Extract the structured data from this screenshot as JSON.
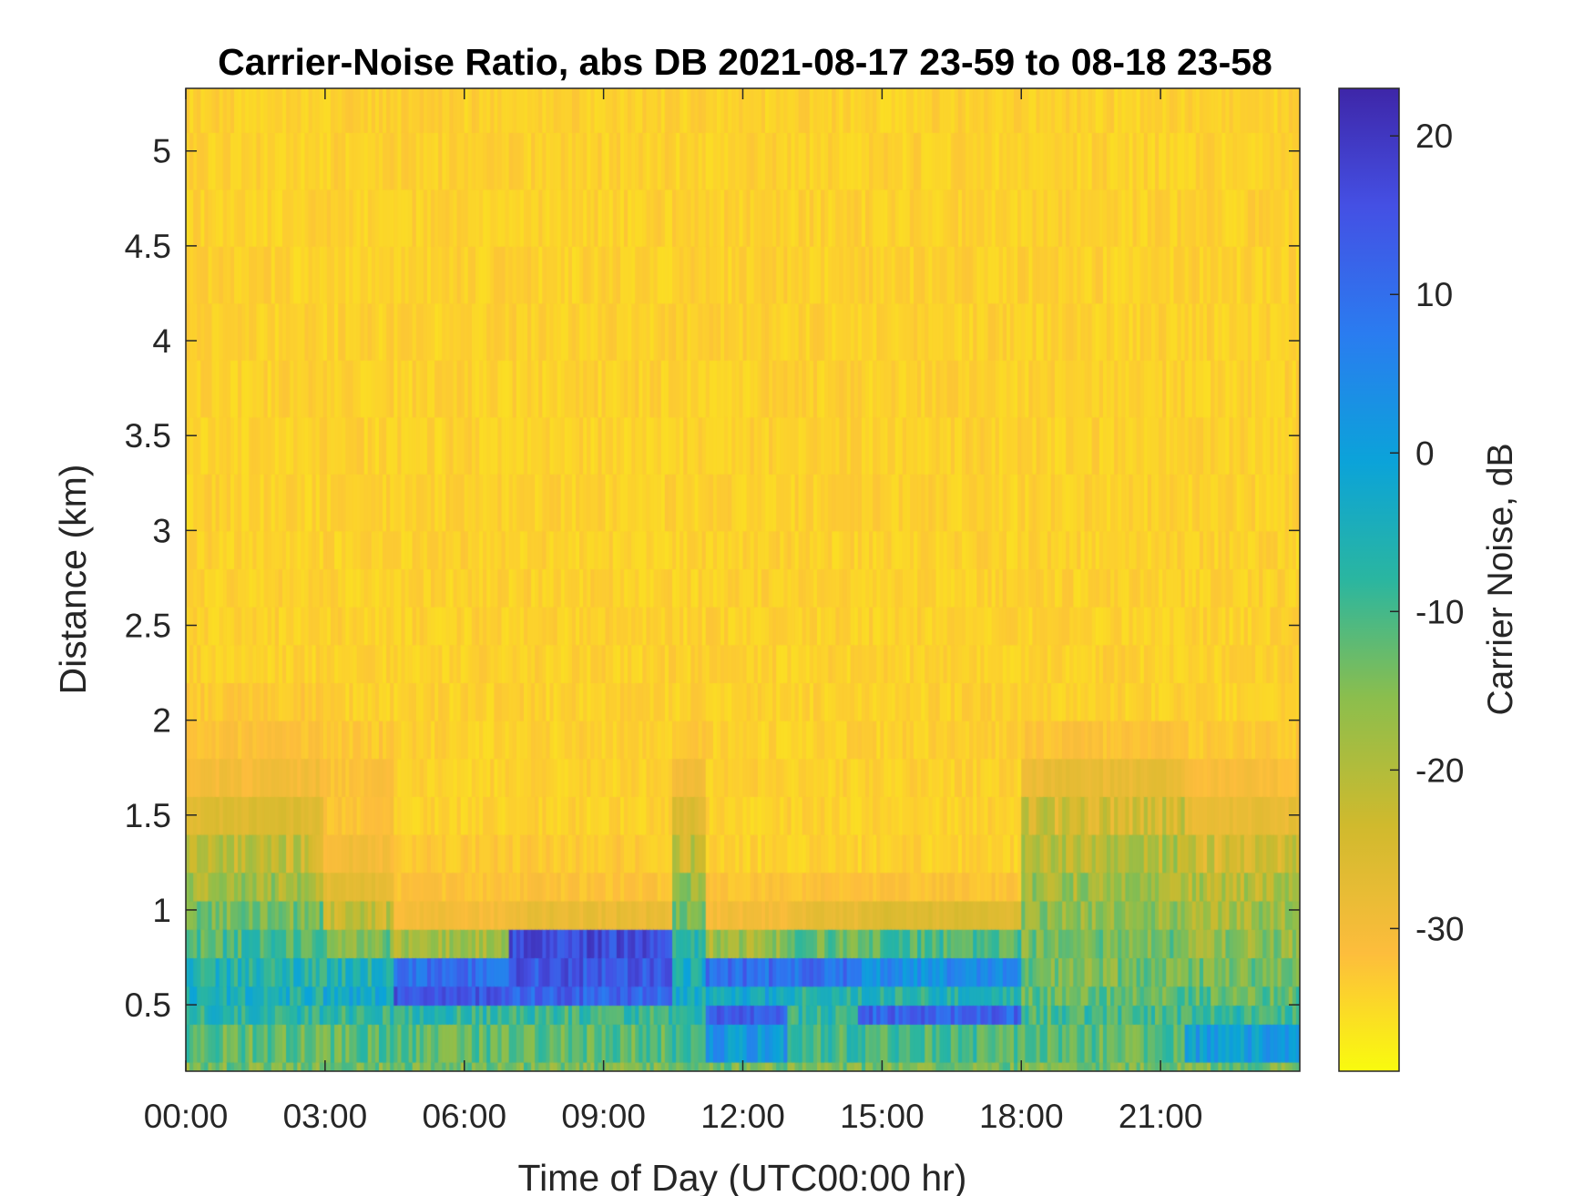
{
  "chart_data": {
    "type": "heatmap",
    "title": "Carrier-Noise Ratio, abs DB 2021-08-17 23-59 to 08-18 23-58",
    "xlabel": "Time of Day (UTC00:00 hr)",
    "ylabel": "Distance (km)",
    "xlim_hours": [
      0,
      24
    ],
    "ylim_km": [
      0.15,
      5.33
    ],
    "x_ticks": [
      {
        "hours": 0,
        "label": "00:00"
      },
      {
        "hours": 3,
        "label": "03:00"
      },
      {
        "hours": 6,
        "label": "06:00"
      },
      {
        "hours": 9,
        "label": "09:00"
      },
      {
        "hours": 12,
        "label": "12:00"
      },
      {
        "hours": 15,
        "label": "15:00"
      },
      {
        "hours": 18,
        "label": "18:00"
      },
      {
        "hours": 21,
        "label": "21:00"
      }
    ],
    "y_ticks": [
      {
        "km": 0.5,
        "label": "0.5"
      },
      {
        "km": 1,
        "label": "1"
      },
      {
        "km": 1.5,
        "label": "1.5"
      },
      {
        "km": 2,
        "label": "2"
      },
      {
        "km": 2.5,
        "label": "2.5"
      },
      {
        "km": 3,
        "label": "3"
      },
      {
        "km": 3.5,
        "label": "3.5"
      },
      {
        "km": 4,
        "label": "4"
      },
      {
        "km": 4.5,
        "label": "4.5"
      },
      {
        "km": 5,
        "label": "5"
      }
    ],
    "colorbar": {
      "label": "Carrier Noise, dB",
      "range_db": [
        -39,
        23
      ],
      "colormap": "parula (reversed: yellow = low, dark blue = high)",
      "ticks": [
        {
          "db": 20,
          "label": "20"
        },
        {
          "db": 10,
          "label": "10"
        },
        {
          "db": 0,
          "label": "0"
        },
        {
          "db": -10,
          "label": "-10"
        },
        {
          "db": -20,
          "label": "-20"
        },
        {
          "db": -30,
          "label": "-30"
        }
      ]
    },
    "time_step_hours": 0.25,
    "time_segments": [
      {
        "t0": 0.0,
        "t1": 3.0,
        "profile": [
          -14,
          -12,
          -7,
          -5,
          -6,
          -10,
          -14,
          -18,
          -22,
          -26,
          -30,
          -32,
          -33,
          -34,
          -34,
          -34,
          -34,
          -34,
          -34,
          -34,
          -34,
          -34,
          -34,
          -34,
          -34
        ]
      },
      {
        "t0": 3.0,
        "t1": 4.5,
        "profile": [
          -14,
          -12,
          -8,
          -3,
          -6,
          -14,
          -22,
          -27,
          -30,
          -32,
          -32,
          -33,
          -34,
          -34,
          -34,
          -34,
          -34,
          -34,
          -34,
          -34,
          -34,
          -34,
          -34,
          -34,
          -34
        ]
      },
      {
        "t0": 4.5,
        "t1": 7.0,
        "profile": [
          -14,
          -12,
          -8,
          14,
          10,
          -18,
          -30,
          -32,
          -33,
          -34,
          -34,
          -34,
          -34,
          -34,
          -34,
          -34,
          -34,
          -34,
          -34,
          -34,
          -34,
          -34,
          -34,
          -34,
          -34
        ]
      },
      {
        "t0": 7.0,
        "t1": 10.5,
        "profile": [
          -14,
          -12,
          -9,
          12,
          14,
          16,
          -28,
          -32,
          -33,
          -34,
          -34,
          -34,
          -34,
          -34,
          -34,
          -34,
          -34,
          -34,
          -34,
          -34,
          -34,
          -34,
          -34,
          -34,
          -34
        ]
      },
      {
        "t0": 10.5,
        "t1": 11.2,
        "profile": [
          -14,
          -10,
          -6,
          -4,
          -4,
          -8,
          -14,
          -18,
          -22,
          -26,
          -30,
          -33,
          -34,
          -34,
          -34,
          -34,
          -34,
          -34,
          -34,
          -34,
          -34,
          -34,
          -34,
          -34,
          -34
        ]
      },
      {
        "t0": 11.2,
        "t1": 13.0,
        "profile": [
          -14,
          2,
          12,
          -2,
          10,
          -18,
          -30,
          -32,
          -34,
          -34,
          -34,
          -34,
          -34,
          -34,
          -34,
          -34,
          -34,
          -34,
          -34,
          -34,
          -34,
          -34,
          -34,
          -34,
          -34
        ]
      },
      {
        "t0": 13.0,
        "t1": 14.5,
        "profile": [
          -14,
          -10,
          -8,
          -6,
          10,
          -12,
          -28,
          -32,
          -34,
          -34,
          -34,
          -34,
          -34,
          -34,
          -34,
          -34,
          -34,
          -34,
          -34,
          -34,
          -34,
          -34,
          -34,
          -34,
          -34
        ]
      },
      {
        "t0": 14.5,
        "t1": 18.0,
        "profile": [
          -14,
          -10,
          12,
          -6,
          4,
          -10,
          -26,
          -32,
          -34,
          -34,
          -34,
          -34,
          -34,
          -34,
          -34,
          -34,
          -34,
          -34,
          -34,
          -34,
          -34,
          -34,
          -34,
          -34,
          -34
        ]
      },
      {
        "t0": 18.0,
        "t1": 21.5,
        "profile": [
          -14,
          -12,
          -10,
          -12,
          -14,
          -14,
          -16,
          -18,
          -20,
          -24,
          -28,
          -32,
          -34,
          -34,
          -34,
          -34,
          -34,
          -34,
          -34,
          -34,
          -34,
          -34,
          -34,
          -34,
          -34
        ]
      },
      {
        "t0": 21.5,
        "t1": 24.0,
        "profile": [
          -14,
          0,
          -8,
          -12,
          -14,
          -16,
          -18,
          -20,
          -24,
          -28,
          -31,
          -33,
          -34,
          -34,
          -34,
          -34,
          -34,
          -34,
          -34,
          -34,
          -34,
          -34,
          -34,
          -34,
          -34
        ]
      }
    ],
    "profile_heights_km": [
      0.2,
      0.4,
      0.5,
      0.6,
      0.75,
      0.9,
      1.05,
      1.2,
      1.4,
      1.6,
      1.8,
      2.0,
      2.2,
      2.4,
      2.6,
      2.8,
      3.0,
      3.3,
      3.6,
      3.9,
      4.2,
      4.5,
      4.8,
      5.1,
      5.33
    ]
  }
}
